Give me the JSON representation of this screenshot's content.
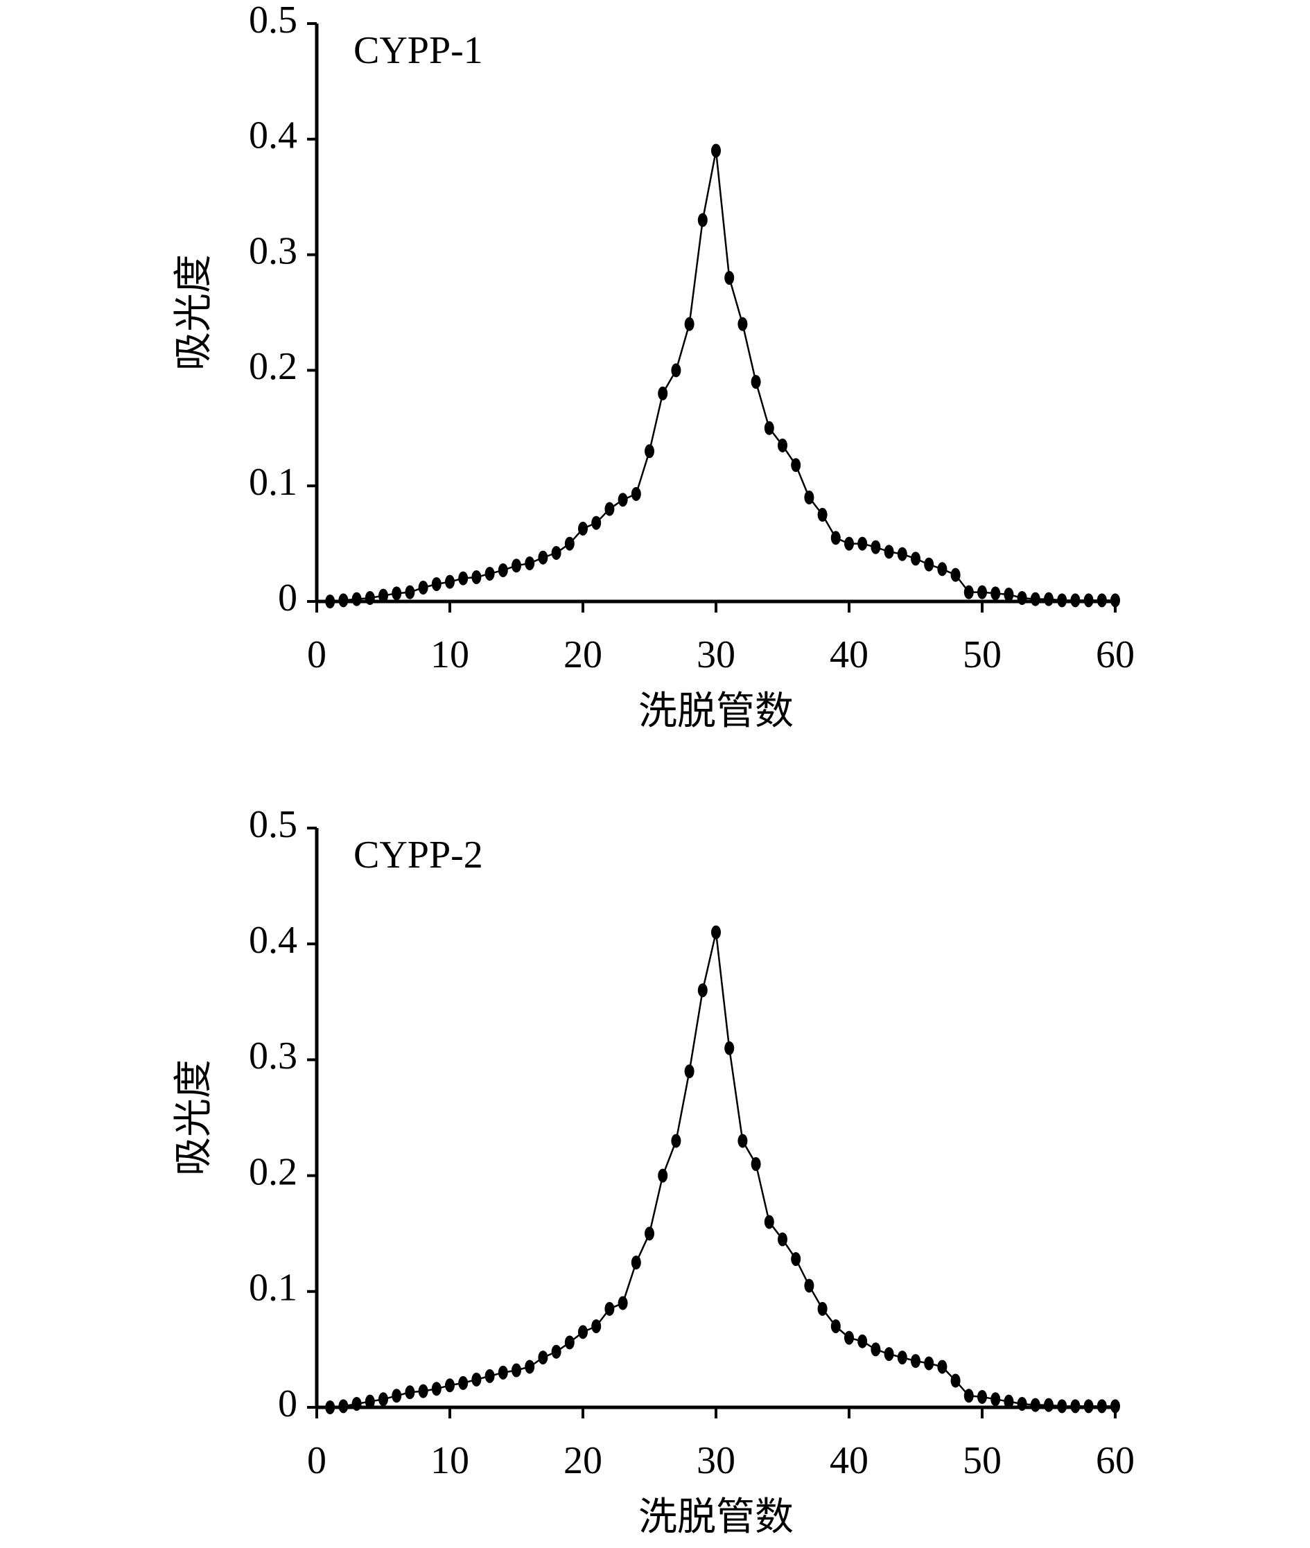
{
  "chart_data": [
    {
      "type": "line",
      "annotation": "CYPP-1",
      "x_label": "洗脱管数",
      "y_label": "吸光度",
      "x": [
        1,
        2,
        3,
        4,
        5,
        6,
        7,
        8,
        9,
        10,
        11,
        12,
        13,
        14,
        15,
        16,
        17,
        18,
        19,
        20,
        21,
        22,
        23,
        24,
        25,
        26,
        27,
        28,
        29,
        30,
        31,
        32,
        33,
        34,
        35,
        36,
        37,
        38,
        39,
        40,
        41,
        42,
        43,
        44,
        45,
        46,
        47,
        48,
        49,
        50,
        51,
        52,
        53,
        54,
        55,
        56,
        57,
        58,
        59,
        60
      ],
      "series": [
        {
          "color": "#000000",
          "values": [
            0,
            0.001,
            0.002,
            0.003,
            0.005,
            0.007,
            0.008,
            0.012,
            0.015,
            0.017,
            0.02,
            0.021,
            0.024,
            0.027,
            0.031,
            0.033,
            0.038,
            0.042,
            0.05,
            0.063,
            0.068,
            0.08,
            0.088,
            0.093,
            0.13,
            0.18,
            0.2,
            0.24,
            0.33,
            0.39,
            0.28,
            0.24,
            0.19,
            0.15,
            0.135,
            0.118,
            0.09,
            0.075,
            0.055,
            0.05,
            0.05,
            0.047,
            0.043,
            0.041,
            0.037,
            0.032,
            0.028,
            0.023,
            0.008,
            0.008,
            0.007,
            0.006,
            0.003,
            0.002,
            0.002,
            0.001,
            0.001,
            0.001,
            0.001,
            0.001
          ]
        }
      ],
      "xlim": [
        0,
        60
      ],
      "xticks": [
        0,
        10,
        20,
        30,
        40,
        50,
        60
      ],
      "ylim": [
        0,
        0.5
      ],
      "yticks": [
        0,
        0.1,
        0.2,
        0.3,
        0.4,
        0.5
      ]
    },
    {
      "type": "line",
      "annotation": "CYPP-2",
      "x_label": "洗脱管数",
      "y_label": "吸光度",
      "x": [
        1,
        2,
        3,
        4,
        5,
        6,
        7,
        8,
        9,
        10,
        11,
        12,
        13,
        14,
        15,
        16,
        17,
        18,
        19,
        20,
        21,
        22,
        23,
        24,
        25,
        26,
        27,
        28,
        29,
        30,
        31,
        32,
        33,
        34,
        35,
        36,
        37,
        38,
        39,
        40,
        41,
        42,
        43,
        44,
        45,
        46,
        47,
        48,
        49,
        50,
        51,
        52,
        53,
        54,
        55,
        56,
        57,
        58,
        59,
        60
      ],
      "series": [
        {
          "color": "#000000",
          "values": [
            0,
            0.001,
            0.003,
            0.005,
            0.007,
            0.01,
            0.013,
            0.014,
            0.016,
            0.019,
            0.021,
            0.024,
            0.027,
            0.03,
            0.032,
            0.035,
            0.043,
            0.048,
            0.056,
            0.065,
            0.07,
            0.085,
            0.09,
            0.125,
            0.15,
            0.2,
            0.23,
            0.29,
            0.36,
            0.41,
            0.31,
            0.23,
            0.21,
            0.16,
            0.145,
            0.128,
            0.105,
            0.085,
            0.07,
            0.06,
            0.057,
            0.05,
            0.046,
            0.043,
            0.04,
            0.038,
            0.035,
            0.023,
            0.01,
            0.009,
            0.007,
            0.005,
            0.003,
            0.002,
            0.002,
            0.001,
            0.001,
            0.001,
            0.001,
            0.001
          ]
        }
      ],
      "xlim": [
        0,
        60
      ],
      "xticks": [
        0,
        10,
        20,
        30,
        40,
        50,
        60
      ],
      "ylim": [
        0,
        0.5
      ],
      "yticks": [
        0,
        0.1,
        0.2,
        0.3,
        0.4,
        0.5
      ]
    }
  ]
}
